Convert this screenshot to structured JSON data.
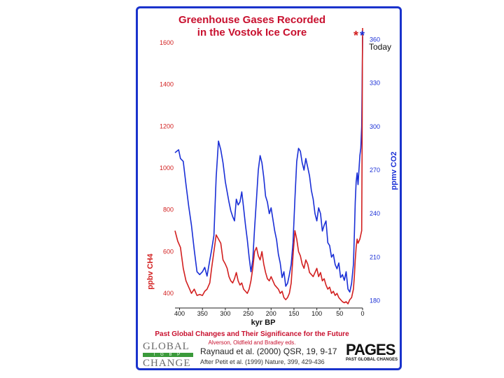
{
  "title_line1": "Greenhouse Gases Recorded",
  "title_line2": "in the Vostok Ice Core",
  "today_label": "Today",
  "footer_title": "Past Global Changes and Their Significance for the Future",
  "footer_editors": "Alverson, Oldfield and Bradley eds.",
  "citation": "Raynaud et al. (2000) QSR, 19, 9-17",
  "citation_source": "After Petit et al. (1999) Nature, 399, 429-436",
  "logo_global": "GLOBAL",
  "logo_igbp": "I G B P",
  "logo_change": "CHANGE",
  "logo_pages": "PAGES",
  "logo_pages_sub": "PAST GLOBAL CHANGES",
  "colors": {
    "co2": "#1a2fd6",
    "ch4": "#d21f1f",
    "frame": "#1a33cc",
    "title": "#c8102e"
  },
  "chart_data": {
    "type": "line",
    "title": "Greenhouse Gases Recorded in the Vostok Ice Core",
    "xlabel": "kyr BP",
    "x_ticks": [
      "400",
      "350",
      "300",
      "250",
      "200",
      "150",
      "100",
      "50",
      "0"
    ],
    "xlim": [
      410,
      0
    ],
    "y_left": {
      "label": "ppbv CH4",
      "ticks": [
        "1600",
        "1400",
        "1200",
        "1000",
        "800",
        "600",
        "400"
      ],
      "lim": [
        330,
        1650
      ]
    },
    "y_right": {
      "label": "ppmv CO2",
      "ticks": [
        "360",
        "330",
        "300",
        "270",
        "240",
        "210",
        "180"
      ],
      "lim": [
        175,
        365
      ]
    },
    "grid": false,
    "series": [
      {
        "axis": "right",
        "x": [
          410,
          402,
          398,
          392,
          386,
          380,
          374,
          368,
          362,
          356,
          350,
          345,
          340,
          334,
          330,
          325,
          320,
          315,
          310,
          305,
          300,
          296,
          292,
          288,
          284,
          280,
          276,
          272,
          268,
          264,
          260,
          256,
          252,
          248,
          244,
          240,
          236,
          232,
          228,
          224,
          220,
          216,
          212,
          208,
          204,
          200,
          196,
          192,
          188,
          184,
          180,
          176,
          172,
          168,
          164,
          160,
          156,
          152,
          148,
          144,
          140,
          136,
          132,
          128,
          124,
          120,
          116,
          112,
          108,
          104,
          100,
          96,
          92,
          88,
          84,
          80,
          76,
          72,
          68,
          64,
          60,
          56,
          52,
          48,
          44,
          40,
          36,
          32,
          28,
          24,
          20,
          18,
          16,
          14,
          12,
          10,
          8,
          6,
          4,
          2,
          0.5,
          0
        ],
        "values": [
          282,
          284,
          278,
          276,
          260,
          245,
          232,
          215,
          200,
          198,
          200,
          203,
          197,
          208,
          215,
          225,
          265,
          290,
          284,
          275,
          262,
          255,
          248,
          242,
          238,
          235,
          250,
          246,
          248,
          255,
          244,
          232,
          222,
          210,
          200,
          208,
          230,
          250,
          270,
          280,
          275,
          265,
          252,
          248,
          240,
          244,
          236,
          228,
          222,
          212,
          206,
          196,
          200,
          190,
          192,
          198,
          205,
          220,
          250,
          276,
          285,
          283,
          275,
          270,
          278,
          272,
          266,
          256,
          250,
          240,
          235,
          244,
          240,
          228,
          232,
          235,
          220,
          218,
          210,
          212,
          205,
          202,
          206,
          196,
          198,
          194,
          200,
          188,
          186,
          192,
          205,
          225,
          248,
          262,
          268,
          260,
          270,
          280,
          285,
          300,
          345,
          362
        ]
      },
      {
        "axis": "left",
        "x": [
          410,
          404,
          398,
          392,
          386,
          380,
          374,
          368,
          362,
          356,
          350,
          345,
          340,
          334,
          330,
          325,
          320,
          315,
          310,
          305,
          300,
          296,
          292,
          288,
          284,
          280,
          276,
          272,
          268,
          264,
          260,
          256,
          252,
          248,
          244,
          240,
          236,
          232,
          228,
          224,
          220,
          216,
          212,
          208,
          204,
          200,
          196,
          192,
          188,
          184,
          180,
          176,
          172,
          168,
          164,
          160,
          156,
          152,
          148,
          144,
          140,
          136,
          132,
          128,
          124,
          120,
          116,
          112,
          108,
          104,
          100,
          96,
          92,
          88,
          84,
          80,
          76,
          72,
          68,
          64,
          60,
          56,
          52,
          48,
          44,
          40,
          36,
          32,
          28,
          24,
          20,
          18,
          16,
          14,
          12,
          10,
          8,
          6,
          4,
          2,
          1,
          0.5,
          0
        ],
        "values": [
          700,
          650,
          620,
          520,
          460,
          430,
          400,
          420,
          390,
          395,
          390,
          410,
          420,
          450,
          520,
          600,
          680,
          660,
          640,
          560,
          540,
          520,
          480,
          460,
          450,
          470,
          500,
          460,
          440,
          450,
          420,
          410,
          400,
          420,
          460,
          520,
          600,
          620,
          580,
          560,
          600,
          540,
          500,
          470,
          460,
          480,
          460,
          440,
          430,
          420,
          400,
          410,
          380,
          370,
          380,
          400,
          450,
          580,
          700,
          660,
          600,
          580,
          540,
          520,
          560,
          540,
          500,
          490,
          480,
          500,
          520,
          480,
          500,
          460,
          470,
          440,
          420,
          430,
          400,
          410,
          390,
          400,
          380,
          370,
          360,
          355,
          360,
          350,
          370,
          380,
          420,
          480,
          560,
          620,
          660,
          640,
          650,
          660,
          680,
          700,
          1100,
          1500,
          1700
        ]
      }
    ]
  }
}
